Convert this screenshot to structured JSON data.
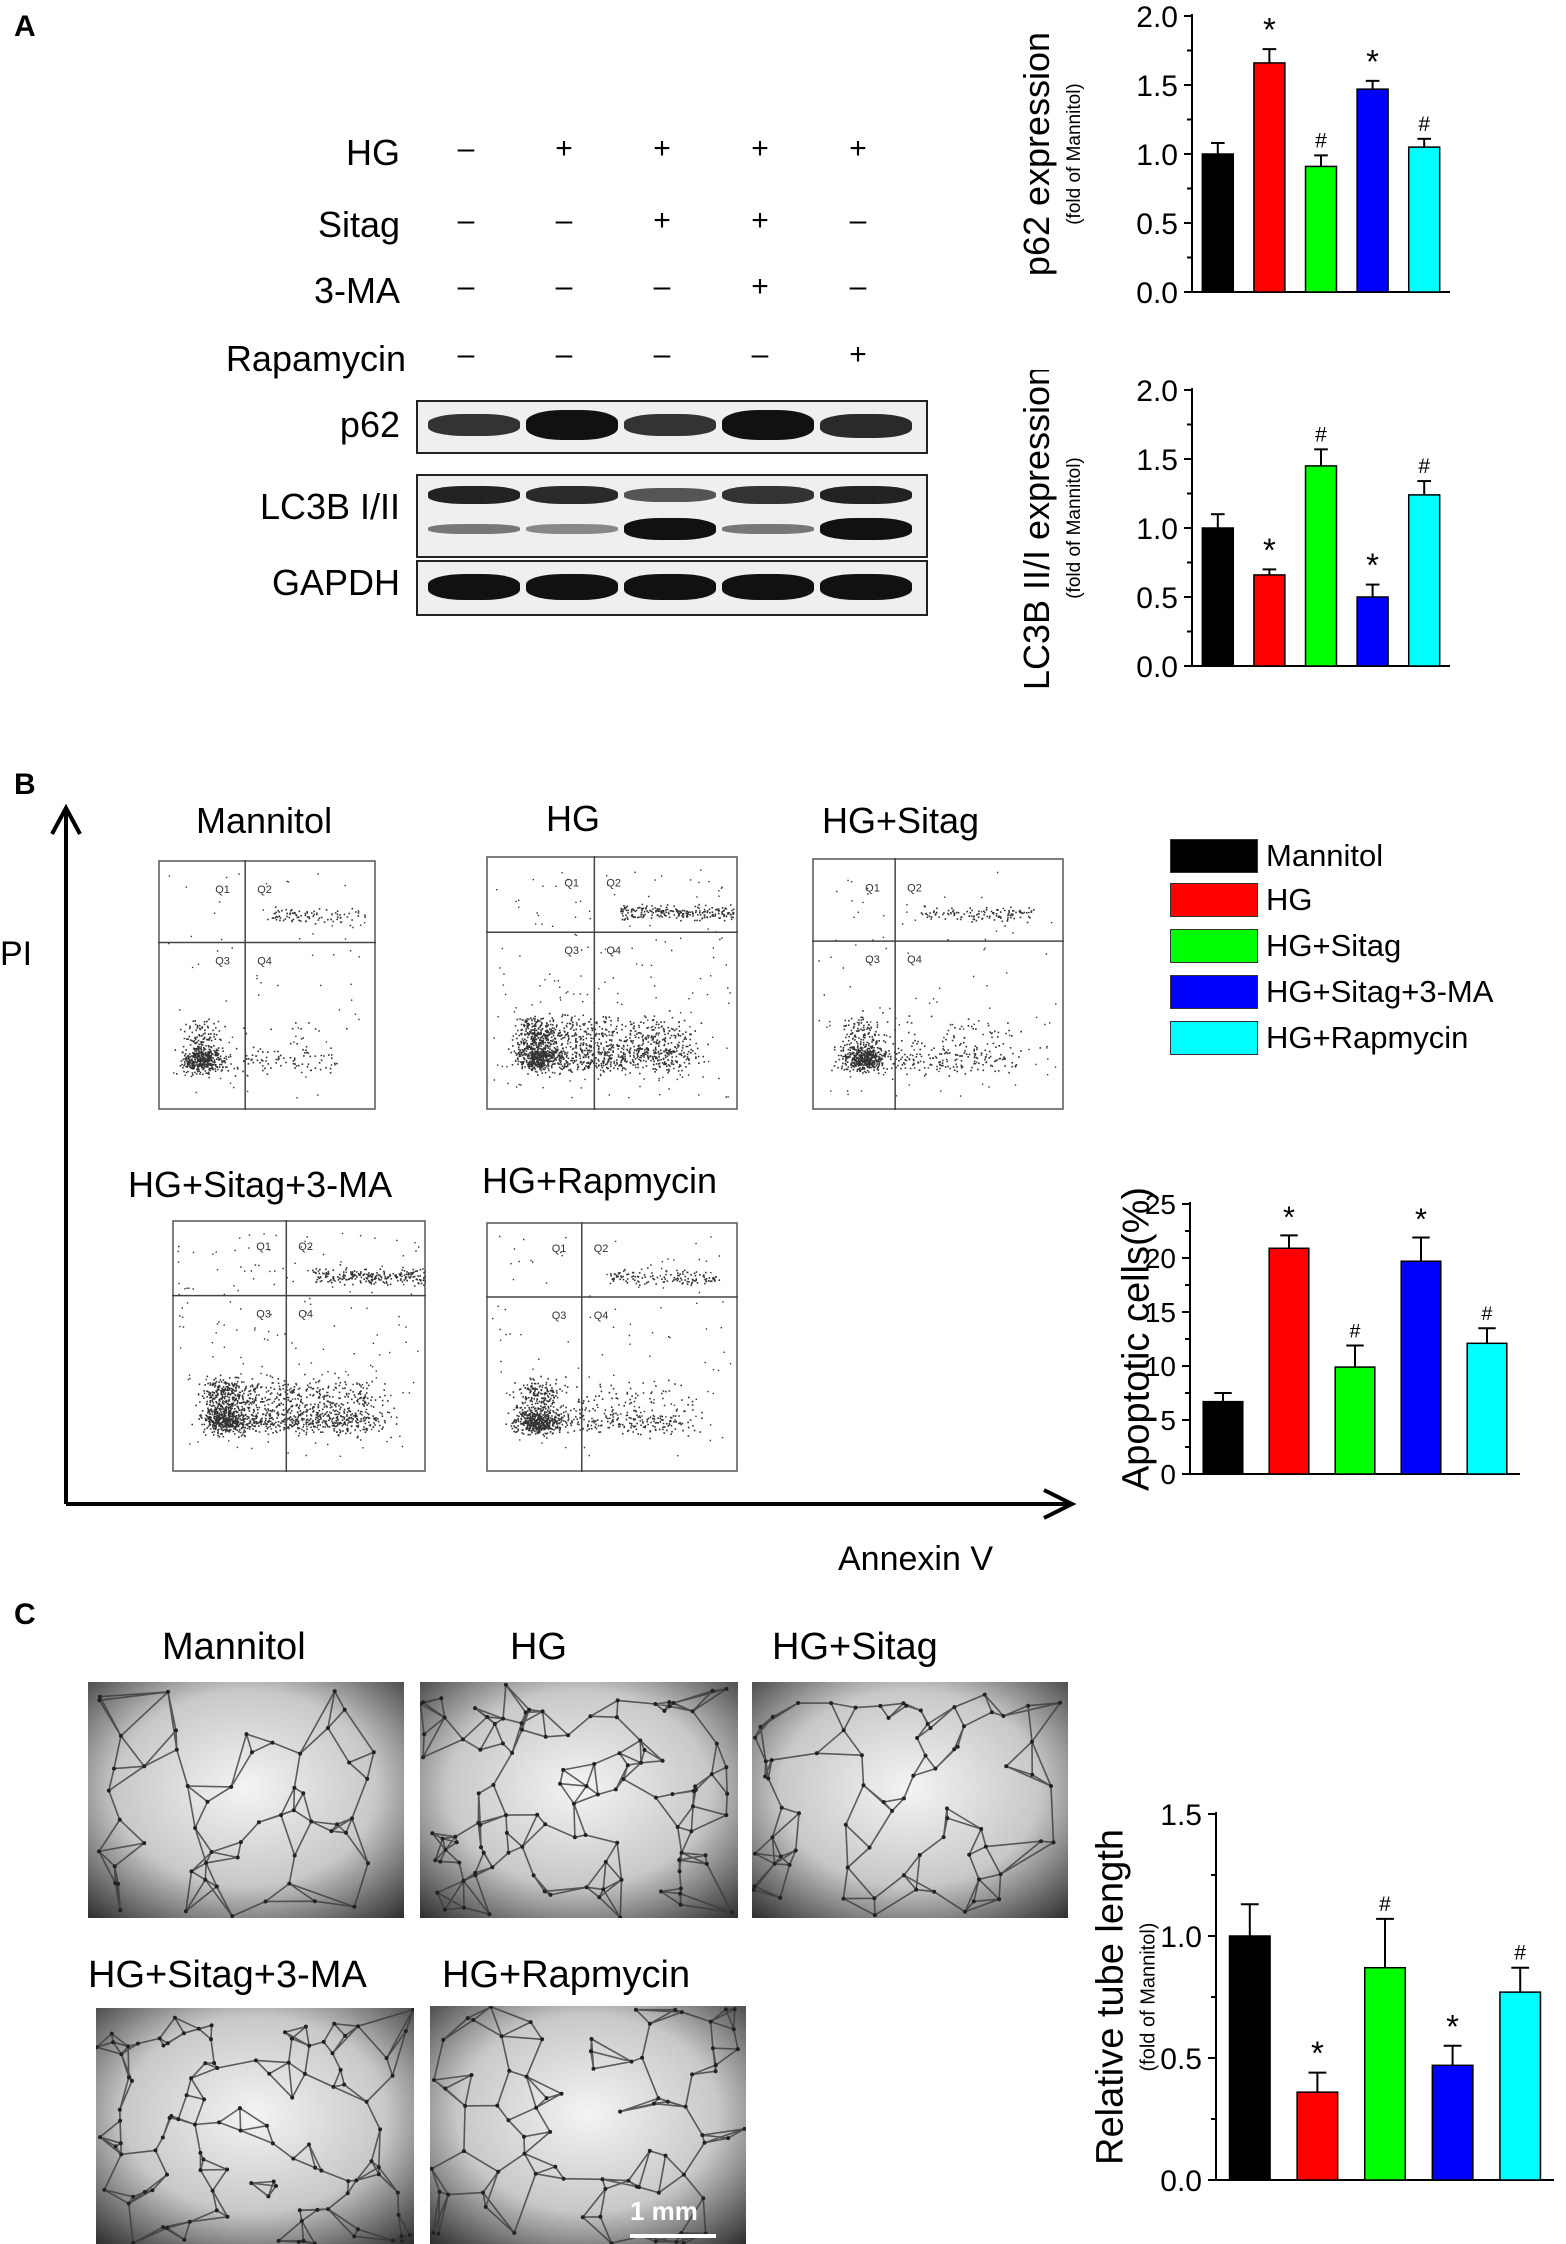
{
  "panels": {
    "a": "A",
    "b": "B",
    "c": "C"
  },
  "panel_a": {
    "treatments": [
      {
        "label": "HG",
        "signs": [
          "–",
          "+",
          "+",
          "+",
          "+"
        ]
      },
      {
        "label": "Sitag",
        "signs": [
          "–",
          "–",
          "+",
          "+",
          "–"
        ]
      },
      {
        "label": "3-MA",
        "signs": [
          "–",
          "–",
          "–",
          "+",
          "–"
        ]
      },
      {
        "label": "Rapamycin",
        "signs": [
          "–",
          "–",
          "–",
          "–",
          "+"
        ]
      }
    ],
    "blots": [
      {
        "label": "p62"
      },
      {
        "label": "LC3B I/II"
      },
      {
        "label": "GAPDH"
      }
    ]
  },
  "panel_b": {
    "y_axis_label": "PI",
    "x_axis_label": "Annexin V",
    "plots": [
      "Mannitol",
      "HG",
      "HG+Sitag",
      "HG+Sitag+3-MA",
      "HG+Rapmycin"
    ],
    "quadrants": [
      "Q1",
      "Q2",
      "Q3",
      "Q4"
    ]
  },
  "legend": {
    "items": [
      {
        "label": "Mannitol",
        "color": "#000000"
      },
      {
        "label": "HG",
        "color": "#ff0000"
      },
      {
        "label": "HG+Sitag",
        "color": "#00ff00"
      },
      {
        "label": "HG+Sitag+3-MA",
        "color": "#0000ff"
      },
      {
        "label": "HG+Rapmycin",
        "color": "#00ffff"
      }
    ]
  },
  "panel_c": {
    "images": [
      "Mannitol",
      "HG",
      "HG+Sitag",
      "HG+Sitag+3-MA",
      "HG+Rapmycin"
    ],
    "scale_bar": "1 mm"
  },
  "chart_data": [
    {
      "type": "bar",
      "categories": [
        "Mannitol",
        "HG",
        "HG+Sitag",
        "HG+Sitag+3-MA",
        "HG+Rapmycin"
      ],
      "values": [
        1.0,
        1.66,
        0.91,
        1.47,
        1.05
      ],
      "errors": [
        0.08,
        0.1,
        0.08,
        0.06,
        0.06
      ],
      "marks": [
        "",
        "*",
        "#",
        "*",
        "#"
      ],
      "colors": [
        "#000000",
        "#ff0000",
        "#00ff00",
        "#0000ff",
        "#00ffff"
      ],
      "ylabel": "p62 expression",
      "ylabel_sub": "(fold of Mannitol)",
      "ylim": [
        0,
        2.0
      ],
      "yticks": [
        "0.0",
        "0.5",
        "1.0",
        "1.5",
        "2.0"
      ]
    },
    {
      "type": "bar",
      "categories": [
        "Mannitol",
        "HG",
        "HG+Sitag",
        "HG+Sitag+3-MA",
        "HG+Rapmycin"
      ],
      "values": [
        1.0,
        0.66,
        1.45,
        0.5,
        1.24
      ],
      "errors": [
        0.1,
        0.04,
        0.12,
        0.09,
        0.1
      ],
      "marks": [
        "",
        "*",
        "#",
        "*",
        "#"
      ],
      "colors": [
        "#000000",
        "#ff0000",
        "#00ff00",
        "#0000ff",
        "#00ffff"
      ],
      "ylabel": "LC3B II/I expression",
      "ylabel_sub": "(fold of Mannitol)",
      "ylim": [
        0,
        2.0
      ],
      "yticks": [
        "0.0",
        "0.5",
        "1.0",
        "1.5",
        "2.0"
      ]
    },
    {
      "type": "bar",
      "categories": [
        "Mannitol",
        "HG",
        "HG+Sitag",
        "HG+Sitag+3-MA",
        "HG+Rapmycin"
      ],
      "values": [
        6.7,
        20.9,
        9.9,
        19.7,
        12.1
      ],
      "errors": [
        0.8,
        1.2,
        2.0,
        2.2,
        1.4
      ],
      "marks": [
        "",
        "*",
        "#",
        "*",
        "#"
      ],
      "colors": [
        "#000000",
        "#ff0000",
        "#00ff00",
        "#0000ff",
        "#00ffff"
      ],
      "ylabel": "Apoptotic cells(%)",
      "ylabel_sub": "",
      "ylim": [
        0,
        25
      ],
      "yticks": [
        "0",
        "5",
        "10",
        "15",
        "20",
        "25"
      ]
    },
    {
      "type": "bar",
      "categories": [
        "Mannitol",
        "HG",
        "HG+Sitag",
        "HG+Sitag+3-MA",
        "HG+Rapmycin"
      ],
      "values": [
        1.0,
        0.36,
        0.87,
        0.47,
        0.77
      ],
      "errors": [
        0.13,
        0.08,
        0.2,
        0.08,
        0.1
      ],
      "marks": [
        "",
        "*",
        "#",
        "*",
        "#"
      ],
      "colors": [
        "#000000",
        "#ff0000",
        "#00ff00",
        "#0000ff",
        "#00ffff"
      ],
      "ylabel": "Relative tube length",
      "ylabel_sub": "(fold of Mannitol)",
      "ylim": [
        0,
        1.5
      ],
      "yticks": [
        "0.0",
        "0.5",
        "1.0",
        "1.5"
      ]
    }
  ]
}
